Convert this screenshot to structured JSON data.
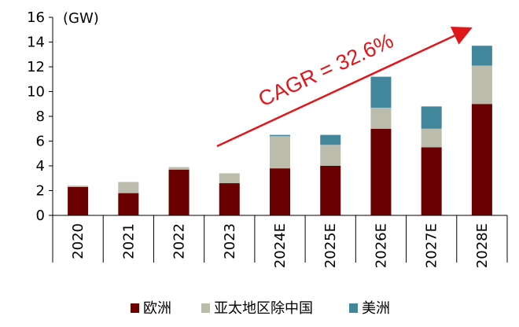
{
  "chart_data": {
    "type": "bar",
    "stacked": true,
    "unit": "(GW)",
    "categories": [
      "2020",
      "2021",
      "2022",
      "2023",
      "2024E",
      "2025E",
      "2026E",
      "2027E",
      "2028E"
    ],
    "series": [
      {
        "name": "欧洲",
        "color": "#6b0000",
        "values": [
          2.3,
          1.8,
          3.7,
          2.6,
          3.8,
          4.0,
          7.0,
          5.5,
          9.0
        ]
      },
      {
        "name": "亚太地区除中国",
        "color": "#bcbcac",
        "values": [
          0.1,
          0.9,
          0.2,
          0.8,
          2.6,
          1.7,
          1.7,
          1.5,
          3.1
        ]
      },
      {
        "name": "美洲",
        "color": "#41869a",
        "values": [
          0.0,
          0.0,
          0.0,
          0.0,
          0.1,
          0.8,
          2.5,
          1.8,
          1.6
        ]
      }
    ],
    "ylim": [
      0,
      16
    ],
    "yticks": [
      "0",
      "2",
      "4",
      "6",
      "8",
      "10",
      "12",
      "14",
      "16"
    ],
    "annotation": {
      "text": "CAGR = 32.6%",
      "color": "#e0161b"
    },
    "grid": false,
    "legend_position": "bottom"
  }
}
